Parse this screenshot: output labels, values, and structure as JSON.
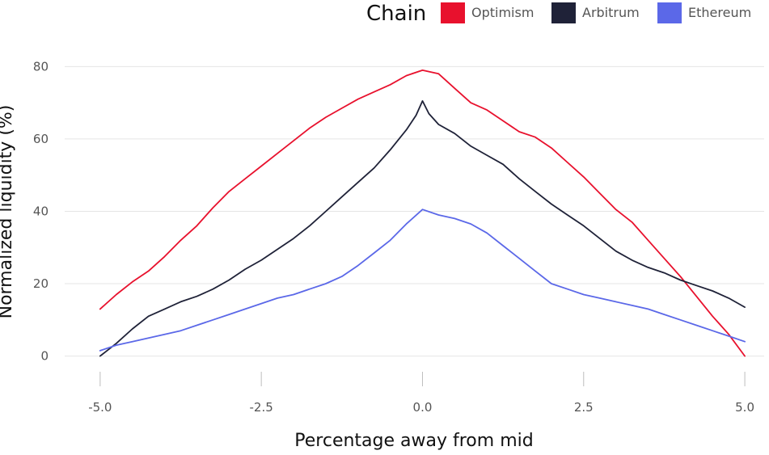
{
  "chart_data": {
    "type": "line",
    "title": "",
    "xlabel": "Percentage away from mid",
    "ylabel": "Normalized liquidity (%)",
    "xlim": [
      -5.55,
      5.3
    ],
    "ylim": [
      -3,
      85
    ],
    "xticks": [
      -5.0,
      -2.5,
      0.0,
      2.5,
      5.0
    ],
    "xtick_labels": [
      "-5.0",
      "-2.5",
      "0.0",
      "2.5",
      "5.0"
    ],
    "yticks": [
      0,
      20,
      40,
      60,
      80
    ],
    "ytick_labels": [
      "0",
      "20",
      "40",
      "60",
      "80"
    ],
    "grid": true,
    "legend": {
      "title": "Chain",
      "position": "top-right",
      "entries": [
        "Optimism",
        "Arbitrum",
        "Ethereum"
      ]
    },
    "series": [
      {
        "name": "Optimism",
        "color": "#e8112d",
        "x": [
          -5.0,
          -4.75,
          -4.5,
          -4.25,
          -4.0,
          -3.75,
          -3.5,
          -3.25,
          -3.0,
          -2.75,
          -2.5,
          -2.25,
          -2.0,
          -1.75,
          -1.5,
          -1.25,
          -1.0,
          -0.75,
          -0.5,
          -0.25,
          0.0,
          0.25,
          0.5,
          0.75,
          1.0,
          1.25,
          1.5,
          1.75,
          2.0,
          2.25,
          2.5,
          2.75,
          3.0,
          3.25,
          3.5,
          3.75,
          4.0,
          4.25,
          4.5,
          4.75,
          5.0
        ],
        "y": [
          13,
          17,
          20.5,
          23.5,
          27.5,
          32,
          36,
          41,
          45.5,
          49,
          52.5,
          56,
          59.5,
          63,
          66,
          68.5,
          71,
          73,
          75,
          77.5,
          79,
          78,
          74,
          70,
          68,
          65,
          62,
          60.5,
          57.5,
          53.5,
          49.5,
          45,
          40.5,
          37,
          32,
          27,
          22,
          16.5,
          11,
          6,
          0
        ]
      },
      {
        "name": "Arbitrum",
        "color": "#1f2238",
        "x": [
          -5.0,
          -4.75,
          -4.5,
          -4.25,
          -4.0,
          -3.75,
          -3.5,
          -3.25,
          -3.0,
          -2.75,
          -2.5,
          -2.25,
          -2.0,
          -1.75,
          -1.5,
          -1.25,
          -1.0,
          -0.75,
          -0.5,
          -0.25,
          -0.1,
          0.0,
          0.1,
          0.25,
          0.5,
          0.75,
          1.0,
          1.25,
          1.5,
          1.75,
          2.0,
          2.25,
          2.5,
          2.75,
          3.0,
          3.25,
          3.5,
          3.75,
          4.0,
          4.25,
          4.5,
          4.75,
          5.0
        ],
        "y": [
          0,
          3.5,
          7.5,
          11,
          13,
          15,
          16.5,
          18.5,
          21,
          24,
          26.5,
          29.5,
          32.5,
          36,
          40,
          44,
          48,
          52,
          57,
          62.5,
          66.5,
          70.5,
          67,
          64,
          61.5,
          58,
          55.5,
          53,
          49,
          45.5,
          42,
          39,
          36,
          32.5,
          29,
          26.5,
          24.5,
          23,
          21,
          19.5,
          18,
          16,
          13.5
        ]
      },
      {
        "name": "Ethereum",
        "color": "#5b68e8",
        "x": [
          -5.0,
          -4.75,
          -4.5,
          -4.25,
          -4.0,
          -3.75,
          -3.5,
          -3.25,
          -3.0,
          -2.75,
          -2.5,
          -2.25,
          -2.0,
          -1.75,
          -1.5,
          -1.25,
          -1.0,
          -0.75,
          -0.5,
          -0.25,
          0.0,
          0.25,
          0.5,
          0.75,
          1.0,
          1.25,
          1.5,
          1.75,
          2.0,
          2.25,
          2.5,
          2.75,
          3.0,
          3.25,
          3.5,
          3.75,
          4.0,
          4.25,
          4.5,
          4.75,
          5.0
        ],
        "y": [
          1.5,
          3,
          4,
          5,
          6,
          7,
          8.5,
          10,
          11.5,
          13,
          14.5,
          16,
          17,
          18.5,
          20,
          22,
          25,
          28.5,
          32,
          36.5,
          40.5,
          39,
          38,
          36.5,
          34,
          30.5,
          27,
          23.5,
          20,
          18.5,
          17,
          16,
          15,
          14,
          13,
          11.5,
          10,
          8.5,
          7,
          5.5,
          4
        ]
      }
    ]
  }
}
